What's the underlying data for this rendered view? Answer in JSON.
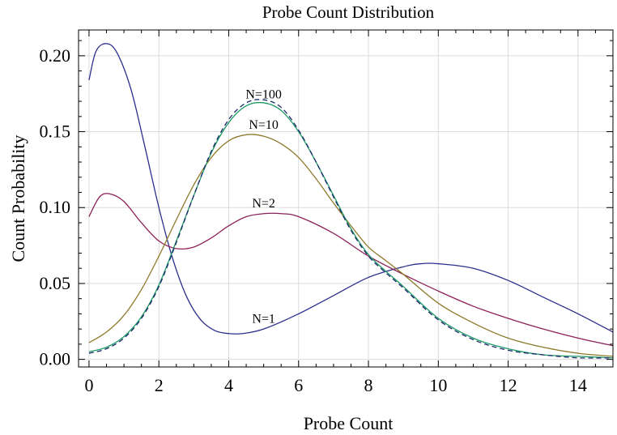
{
  "chart_data": {
    "type": "line",
    "title": "Probe Count Distribution",
    "xlabel": "Probe Count",
    "ylabel": "Count Probability",
    "xlim": [
      -0.3,
      15
    ],
    "ylim": [
      -0.005,
      0.217
    ],
    "xticks": [
      0,
      2,
      4,
      6,
      8,
      10,
      12,
      14
    ],
    "xtick_labels": [
      "0",
      "2",
      "4",
      "6",
      "8",
      "10",
      "12",
      "14"
    ],
    "yticks": [
      0.0,
      0.05,
      0.1,
      0.15,
      0.2
    ],
    "ytick_labels": [
      "0.00",
      "0.05",
      "0.10",
      "0.15",
      "0.20"
    ],
    "grid": true,
    "legend": "none",
    "series": [
      {
        "name": "N=1",
        "color": "#2b2e8c",
        "dash": "solid",
        "label_at": [
          5.0,
          0.024
        ],
        "points": [
          [
            0,
            0.184
          ],
          [
            0.2,
            0.203
          ],
          [
            0.5,
            0.208
          ],
          [
            0.8,
            0.202
          ],
          [
            1.2,
            0.178
          ],
          [
            1.6,
            0.14
          ],
          [
            2.0,
            0.1
          ],
          [
            2.4,
            0.066
          ],
          [
            2.8,
            0.041
          ],
          [
            3.2,
            0.026
          ],
          [
            3.6,
            0.019
          ],
          [
            4.0,
            0.017
          ],
          [
            4.4,
            0.017
          ],
          [
            5.0,
            0.02
          ],
          [
            6.0,
            0.03
          ],
          [
            7.0,
            0.042
          ],
          [
            8.0,
            0.054
          ],
          [
            9.0,
            0.061
          ],
          [
            9.5,
            0.063
          ],
          [
            10.0,
            0.063
          ],
          [
            11.0,
            0.06
          ],
          [
            12.0,
            0.052
          ],
          [
            13.0,
            0.041
          ],
          [
            14.0,
            0.03
          ],
          [
            15.0,
            0.018
          ]
        ]
      },
      {
        "name": "N=2",
        "color": "#8c2058",
        "dash": "solid",
        "label_at": [
          5.0,
          0.1
        ],
        "points": [
          [
            0,
            0.094
          ],
          [
            0.3,
            0.107
          ],
          [
            0.6,
            0.109
          ],
          [
            1.0,
            0.104
          ],
          [
            1.5,
            0.09
          ],
          [
            2.0,
            0.078
          ],
          [
            2.5,
            0.073
          ],
          [
            3.0,
            0.074
          ],
          [
            3.5,
            0.08
          ],
          [
            4.0,
            0.088
          ],
          [
            4.5,
            0.094
          ],
          [
            5.0,
            0.096
          ],
          [
            5.5,
            0.096
          ],
          [
            6.0,
            0.094
          ],
          [
            7.0,
            0.083
          ],
          [
            8.0,
            0.068
          ],
          [
            9.0,
            0.056
          ],
          [
            10.0,
            0.045
          ],
          [
            11.0,
            0.035
          ],
          [
            12.0,
            0.027
          ],
          [
            13.0,
            0.02
          ],
          [
            14.0,
            0.014
          ],
          [
            15.0,
            0.009
          ]
        ]
      },
      {
        "name": "N=10",
        "color": "#8c7a2a",
        "dash": "solid",
        "label_at": [
          5.0,
          0.152
        ],
        "points": [
          [
            0,
            0.011
          ],
          [
            0.5,
            0.018
          ],
          [
            1.0,
            0.029
          ],
          [
            1.5,
            0.046
          ],
          [
            2.0,
            0.068
          ],
          [
            2.5,
            0.092
          ],
          [
            3.0,
            0.115
          ],
          [
            3.5,
            0.133
          ],
          [
            4.0,
            0.144
          ],
          [
            4.5,
            0.148
          ],
          [
            5.0,
            0.147
          ],
          [
            5.5,
            0.142
          ],
          [
            6.0,
            0.133
          ],
          [
            6.5,
            0.119
          ],
          [
            7.0,
            0.103
          ],
          [
            7.5,
            0.088
          ],
          [
            8.0,
            0.074
          ],
          [
            8.5,
            0.065
          ],
          [
            9.0,
            0.056
          ],
          [
            10.0,
            0.037
          ],
          [
            11.0,
            0.024
          ],
          [
            12.0,
            0.014
          ],
          [
            13.0,
            0.008
          ],
          [
            14.0,
            0.004
          ],
          [
            15.0,
            0.002
          ]
        ]
      },
      {
        "name": "N=100",
        "color": "#1f9a66",
        "dash": "solid",
        "label_at": [
          5.0,
          0.172
        ],
        "points": [
          [
            0,
            0.005
          ],
          [
            0.5,
            0.008
          ],
          [
            1.0,
            0.015
          ],
          [
            1.5,
            0.028
          ],
          [
            2.0,
            0.049
          ],
          [
            2.5,
            0.078
          ],
          [
            3.0,
            0.108
          ],
          [
            3.5,
            0.136
          ],
          [
            4.0,
            0.156
          ],
          [
            4.5,
            0.167
          ],
          [
            5.0,
            0.169
          ],
          [
            5.5,
            0.164
          ],
          [
            6.0,
            0.15
          ],
          [
            6.5,
            0.13
          ],
          [
            7.0,
            0.108
          ],
          [
            7.5,
            0.086
          ],
          [
            8.0,
            0.069
          ],
          [
            8.5,
            0.058
          ],
          [
            9.0,
            0.048
          ],
          [
            10.0,
            0.027
          ],
          [
            11.0,
            0.014
          ],
          [
            12.0,
            0.007
          ],
          [
            13.0,
            0.003
          ],
          [
            14.0,
            0.002
          ],
          [
            15.0,
            0.001
          ]
        ]
      },
      {
        "name": "",
        "color": "#1a2a6c",
        "dash": "dashed",
        "points": [
          [
            0,
            0.004
          ],
          [
            0.5,
            0.007
          ],
          [
            1.0,
            0.014
          ],
          [
            1.5,
            0.027
          ],
          [
            2.0,
            0.048
          ],
          [
            2.5,
            0.077
          ],
          [
            3.0,
            0.108
          ],
          [
            3.5,
            0.137
          ],
          [
            4.0,
            0.158
          ],
          [
            4.5,
            0.169
          ],
          [
            5.0,
            0.171
          ],
          [
            5.5,
            0.166
          ],
          [
            6.0,
            0.151
          ],
          [
            6.5,
            0.13
          ],
          [
            7.0,
            0.107
          ],
          [
            7.5,
            0.085
          ],
          [
            8.0,
            0.068
          ],
          [
            8.5,
            0.057
          ],
          [
            9.0,
            0.047
          ],
          [
            10.0,
            0.026
          ],
          [
            11.0,
            0.013
          ],
          [
            12.0,
            0.006
          ],
          [
            13.0,
            0.003
          ],
          [
            14.0,
            0.001
          ],
          [
            15.0,
            0.001
          ]
        ]
      }
    ]
  }
}
